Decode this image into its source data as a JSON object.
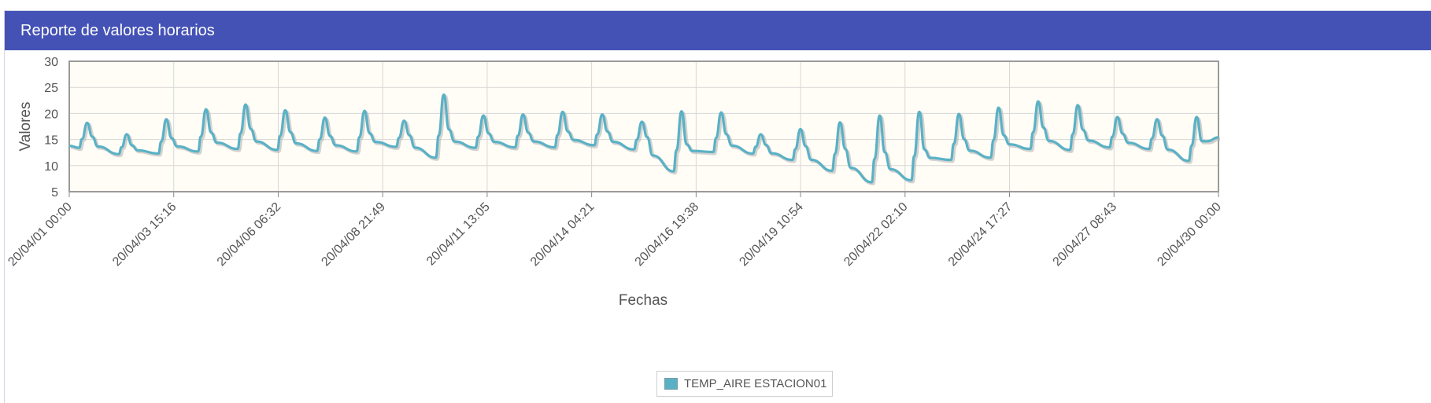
{
  "header": {
    "title": "Reporte de valores horarios"
  },
  "colors": {
    "header_bg": "#4452b6",
    "plot_bg": "#fffdf6",
    "series": "#5ab1c6",
    "shadow": "#b5b5b5",
    "grid": "#d7d7d7"
  },
  "chart_data": {
    "type": "line",
    "xlabel": "Fechas",
    "ylabel": "Valores",
    "ylim": [
      5,
      30
    ],
    "yticks": [
      30,
      25,
      20,
      15,
      10,
      5
    ],
    "xlim": [
      "2020-04-01 00:00",
      "2020-04-30 00:00"
    ],
    "xtick_labels": [
      "20/04/01 00:00",
      "20/04/03 15:16",
      "20/04/06 06:32",
      "20/04/08 21:49",
      "20/04/11 13:05",
      "20/04/14 04:21",
      "20/04/16 19:38",
      "20/04/19 10:54",
      "20/04/22 02:10",
      "20/04/24 17:27",
      "20/04/27 08:43",
      "20/04/30 00:00"
    ],
    "grid": true,
    "legend_position": "bottom-center",
    "series": [
      {
        "name": "TEMP_AIRE ESTACION01",
        "color": "#5ab1c6",
        "daily": [
          {
            "date": "04/01",
            "min": 13.4,
            "max": 18.2,
            "start": 13.8
          },
          {
            "date": "04/02",
            "min": 12.2,
            "max": 16.0
          },
          {
            "date": "04/03",
            "min": 12.3,
            "max": 18.9
          },
          {
            "date": "04/04",
            "min": 12.7,
            "max": 20.8
          },
          {
            "date": "04/05",
            "min": 13.2,
            "max": 21.7
          },
          {
            "date": "04/06",
            "min": 13.0,
            "max": 20.6
          },
          {
            "date": "04/07",
            "min": 12.8,
            "max": 19.2
          },
          {
            "date": "04/08",
            "min": 12.7,
            "max": 20.5
          },
          {
            "date": "04/09",
            "min": 13.6,
            "max": 18.6
          },
          {
            "date": "04/10",
            "min": 11.5,
            "max": 23.6
          },
          {
            "date": "04/11",
            "min": 13.4,
            "max": 19.6
          },
          {
            "date": "04/12",
            "min": 13.5,
            "max": 19.8
          },
          {
            "date": "04/13",
            "min": 13.5,
            "max": 20.3
          },
          {
            "date": "04/14",
            "min": 13.9,
            "max": 19.8
          },
          {
            "date": "04/15",
            "min": 13.1,
            "max": 18.4
          },
          {
            "date": "04/16",
            "min": 8.9,
            "max": 20.4
          },
          {
            "date": "04/17",
            "min": 12.6,
            "max": 20.2
          },
          {
            "date": "04/18",
            "min": 12.3,
            "max": 16.0
          },
          {
            "date": "04/19",
            "min": 11.1,
            "max": 17.0
          },
          {
            "date": "04/20",
            "min": 9.0,
            "max": 18.3
          },
          {
            "date": "04/21",
            "min": 6.8,
            "max": 19.6
          },
          {
            "date": "04/22",
            "min": 7.2,
            "max": 20.3
          },
          {
            "date": "04/23",
            "min": 11.1,
            "max": 19.9
          },
          {
            "date": "04/24",
            "min": 11.5,
            "max": 21.1
          },
          {
            "date": "04/25",
            "min": 13.2,
            "max": 22.3
          },
          {
            "date": "04/26",
            "min": 13.0,
            "max": 21.6
          },
          {
            "date": "04/27",
            "min": 13.5,
            "max": 19.3
          },
          {
            "date": "04/28",
            "min": 13.2,
            "max": 18.9
          },
          {
            "date": "04/29",
            "min": 10.9,
            "max": 19.3,
            "end": 15.4
          }
        ]
      }
    ]
  }
}
